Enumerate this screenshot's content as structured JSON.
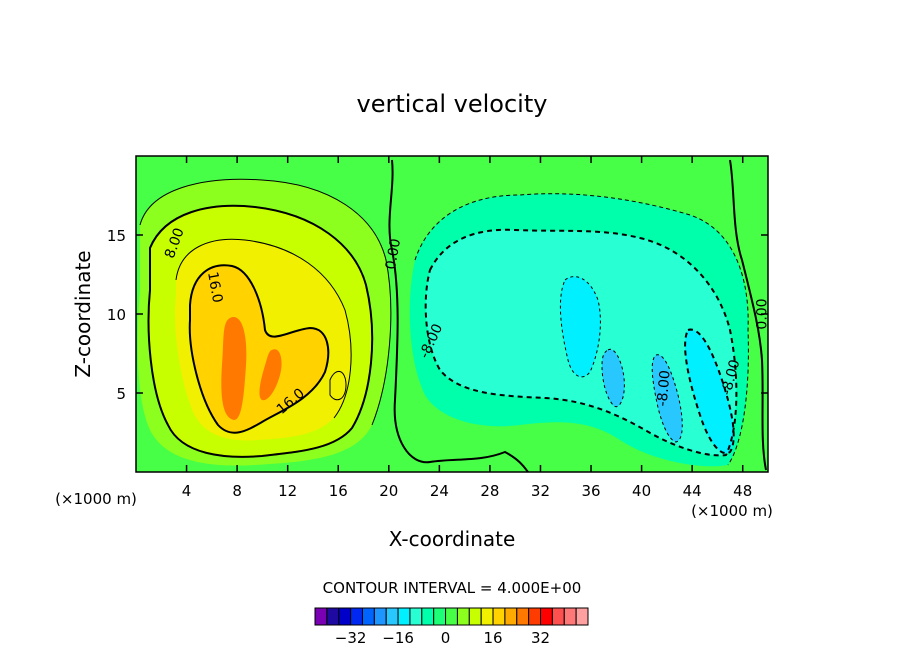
{
  "chart_data": {
    "type": "heatmap",
    "title": "vertical velocity",
    "xlabel": "X-coordinate",
    "ylabel": "Z-coordinate",
    "x_units_left": "(×1000 m)",
    "x_units_right": "(×1000 m)",
    "xlim": [
      0,
      50
    ],
    "ylim": [
      0,
      20
    ],
    "x_ticks": [
      4,
      8,
      12,
      16,
      20,
      24,
      28,
      32,
      36,
      40,
      44,
      48
    ],
    "y_ticks": [
      5,
      10,
      15
    ],
    "contour_interval_text": "CONTOUR INTERVAL = 4.000E+00",
    "contour_labels": [
      {
        "text": "8.00",
        "x": 3.0,
        "y": 14.5,
        "rotate": -70
      },
      {
        "text": "16.0",
        "x": 6.3,
        "y": 11.7,
        "rotate": 80
      },
      {
        "text": "16.0",
        "x": 12.2,
        "y": 4.5,
        "rotate": -40
      },
      {
        "text": "0.00",
        "x": 20.3,
        "y": 13.8,
        "rotate": -80
      },
      {
        "text": "-8.00",
        "x": 23.3,
        "y": 8.3,
        "rotate": -65
      },
      {
        "text": "-8.00",
        "x": 41.7,
        "y": 5.3,
        "rotate": -85
      },
      {
        "text": "-8.00",
        "x": 47.0,
        "y": 6.0,
        "rotate": -75
      },
      {
        "text": "0.00",
        "x": 49.5,
        "y": 10.0,
        "rotate": -90
      }
    ],
    "colorbar": {
      "colors": [
        "#7a00b4",
        "#1e0aa0",
        "#0000c8",
        "#0028f0",
        "#0064ff",
        "#1e96ff",
        "#28c8ff",
        "#00f0ff",
        "#28ffd2",
        "#00ffaa",
        "#1eff78",
        "#46ff46",
        "#8cff1e",
        "#c8ff00",
        "#f0f000",
        "#ffd200",
        "#ffaa00",
        "#ff7800",
        "#ff3c00",
        "#ff0000",
        "#ff5050",
        "#ff7878",
        "#ffa0a0"
      ],
      "tick_labels": [
        "-32",
        "-16",
        "0",
        "16",
        "32"
      ]
    }
  }
}
